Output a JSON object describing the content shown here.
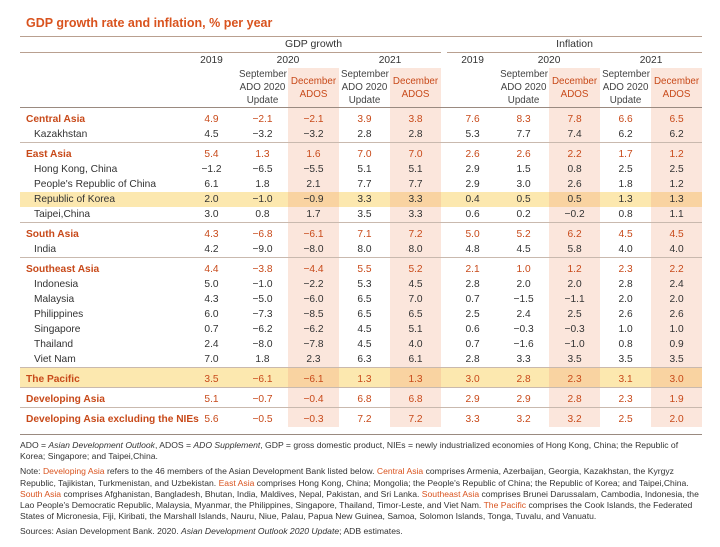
{
  "title": "GDP growth rate and inflation, % per year",
  "groups": {
    "gdp": "GDP growth",
    "inflation": "Inflation"
  },
  "years": {
    "y2019": "2019",
    "y2020": "2020",
    "y2021": "2021"
  },
  "sub": {
    "sep": "September ADO 2020 Update",
    "dec": "December ADOS"
  },
  "rows": [
    {
      "label": "Central Asia",
      "type": "group",
      "values": [
        "4.9",
        "−2.1",
        "−2.1",
        "3.9",
        "3.8",
        "7.6",
        "8.3",
        "7.8",
        "6.6",
        "6.5"
      ]
    },
    {
      "label": "Kazakhstan",
      "type": "sub",
      "values": [
        "4.5",
        "−3.2",
        "−3.2",
        "2.8",
        "2.8",
        "5.3",
        "7.7",
        "7.4",
        "6.2",
        "6.2"
      ]
    },
    {
      "label": "East Asia",
      "type": "group",
      "values": [
        "5.4",
        "1.3",
        "1.6",
        "7.0",
        "7.0",
        "2.6",
        "2.6",
        "2.2",
        "1.7",
        "1.2"
      ]
    },
    {
      "label": "Hong Kong, China",
      "type": "sub",
      "values": [
        "−1.2",
        "−6.5",
        "−5.5",
        "5.1",
        "5.1",
        "2.9",
        "1.5",
        "0.8",
        "2.5",
        "2.5"
      ]
    },
    {
      "label": "People's Republic of China",
      "type": "sub",
      "values": [
        "6.1",
        "1.8",
        "2.1",
        "7.7",
        "7.7",
        "2.9",
        "3.0",
        "2.6",
        "1.8",
        "1.2"
      ]
    },
    {
      "label": "Republic of Korea",
      "type": "sub",
      "highlight": true,
      "values": [
        "2.0",
        "−1.0",
        "−0.9",
        "3.3",
        "3.3",
        "0.4",
        "0.5",
        "0.5",
        "1.3",
        "1.3"
      ]
    },
    {
      "label": "Taipei,China",
      "type": "sub",
      "values": [
        "3.0",
        "0.8",
        "1.7",
        "3.5",
        "3.3",
        "0.6",
        "0.2",
        "−0.2",
        "0.8",
        "1.1"
      ]
    },
    {
      "label": "South Asia",
      "type": "group",
      "values": [
        "4.3",
        "−6.8",
        "−6.1",
        "7.1",
        "7.2",
        "5.0",
        "5.2",
        "6.2",
        "4.5",
        "4.5"
      ]
    },
    {
      "label": "India",
      "type": "sub",
      "values": [
        "4.2",
        "−9.0",
        "−8.0",
        "8.0",
        "8.0",
        "4.8",
        "4.5",
        "5.8",
        "4.0",
        "4.0"
      ]
    },
    {
      "label": "Southeast Asia",
      "type": "group",
      "values": [
        "4.4",
        "−3.8",
        "−4.4",
        "5.5",
        "5.2",
        "2.1",
        "1.0",
        "1.2",
        "2.3",
        "2.2"
      ]
    },
    {
      "label": "Indonesia",
      "type": "sub",
      "values": [
        "5.0",
        "−1.0",
        "−2.2",
        "5.3",
        "4.5",
        "2.8",
        "2.0",
        "2.0",
        "2.8",
        "2.4"
      ]
    },
    {
      "label": "Malaysia",
      "type": "sub",
      "values": [
        "4.3",
        "−5.0",
        "−6.0",
        "6.5",
        "7.0",
        "0.7",
        "−1.5",
        "−1.1",
        "2.0",
        "2.0"
      ]
    },
    {
      "label": "Philippines",
      "type": "sub",
      "values": [
        "6.0",
        "−7.3",
        "−8.5",
        "6.5",
        "6.5",
        "2.5",
        "2.4",
        "2.5",
        "2.6",
        "2.6"
      ]
    },
    {
      "label": "Singapore",
      "type": "sub",
      "values": [
        "0.7",
        "−6.2",
        "−6.2",
        "4.5",
        "5.1",
        "0.6",
        "−0.3",
        "−0.3",
        "1.0",
        "1.0"
      ]
    },
    {
      "label": "Thailand",
      "type": "sub",
      "values": [
        "2.4",
        "−8.0",
        "−7.8",
        "4.5",
        "4.0",
        "0.7",
        "−1.6",
        "−1.0",
        "0.8",
        "0.9"
      ]
    },
    {
      "label": "Viet Nam",
      "type": "sub",
      "values": [
        "7.0",
        "1.8",
        "2.3",
        "6.3",
        "6.1",
        "2.8",
        "3.3",
        "3.5",
        "3.5",
        "3.5"
      ]
    },
    {
      "label": "The Pacific",
      "type": "group",
      "highlight": true,
      "values": [
        "3.5",
        "−6.1",
        "−6.1",
        "1.3",
        "1.3",
        "3.0",
        "2.8",
        "2.3",
        "3.1",
        "3.0"
      ]
    },
    {
      "label": "Developing Asia",
      "type": "group",
      "values": [
        "5.1",
        "−0.7",
        "−0.4",
        "6.8",
        "6.8",
        "2.9",
        "2.9",
        "2.8",
        "2.3",
        "1.9"
      ]
    },
    {
      "label": "Developing Asia excluding the NIEs",
      "type": "group",
      "values": [
        "5.6",
        "−0.5",
        "−0.3",
        "7.2",
        "7.2",
        "3.3",
        "3.2",
        "3.2",
        "2.5",
        "2.0"
      ]
    }
  ],
  "notes": {
    "abbr_1": "ADO = ",
    "abbr_2": "Asian Development Outlook",
    "abbr_3": ", ADOS = ",
    "abbr_4": "ADO Supplement",
    "abbr_5": ", GDP = gross domestic product, NIEs = newly industrialized economies of Hong Kong, China; the Republic of Korea; Singapore; and Taipei,China.",
    "n_prefix": "Note: ",
    "n_dev": "Developing Asia",
    "n_dev_t": " refers to the 46 members of the Asian Development Bank listed below. ",
    "n_ca": "Central Asia",
    "n_ca_t": " comprises Armenia, Azerbaijan, Georgia, Kazakhstan, the Kyrgyz Republic, Tajikistan, Turkmenistan, and Uzbekistan. ",
    "n_ea": "East Asia",
    "n_ea_t": " comprises Hong Kong, China; Mongolia; the People's Republic of China; the Republic of Korea; and Taipei,China. ",
    "n_sa": "South Asia",
    "n_sa_t": " comprises Afghanistan, Bangladesh, Bhutan, India, Maldives, Nepal, Pakistan, and Sri Lanka. ",
    "n_sea": "Southeast Asia",
    "n_sea_t": " comprises Brunei Darussalam, Cambodia, Indonesia, the Lao People's Democratic Republic, Malaysia, Myanmar, the Philippines, Singapore, Thailand, Timor-Leste, and Viet Nam. ",
    "n_pac": "The Pacific",
    "n_pac_t": " comprises the Cook Islands, the Federated States of Micronesia, Fiji, Kiribati, the Marshall Islands, Nauru, Niue, Palau, Papua New Guinea, Samoa, Solomon Islands, Tonga, Tuvalu, and Vanuatu.",
    "src_1": "Sources: Asian Development Bank. 2020. ",
    "src_2": "Asian Development Outlook 2020 Update",
    "src_3": "; ADB estimates."
  },
  "colors": {
    "accent": "#d9531e",
    "shade": "#fbe6dc",
    "highlight": "#fad66e"
  }
}
